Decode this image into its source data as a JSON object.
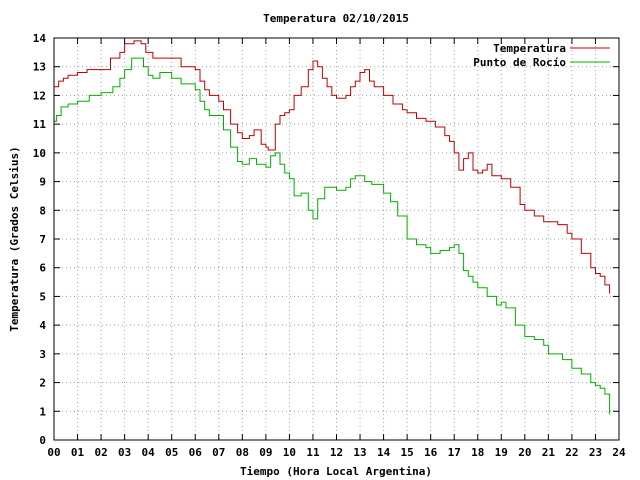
{
  "chart_data": {
    "type": "line",
    "title": "Temperatura 02/10/2015",
    "xlabel": "Tiempo (Hora Local Argentina)",
    "ylabel": "Temperatura (Grados Celsius)",
    "xlim": [
      0,
      24
    ],
    "ylim": [
      0,
      14
    ],
    "x_ticks": [
      "00",
      "01",
      "02",
      "03",
      "04",
      "05",
      "06",
      "07",
      "08",
      "09",
      "10",
      "11",
      "12",
      "13",
      "14",
      "15",
      "16",
      "17",
      "18",
      "19",
      "20",
      "21",
      "22",
      "23",
      "24"
    ],
    "y_ticks": [
      "0",
      "1",
      "2",
      "3",
      "4",
      "5",
      "6",
      "7",
      "8",
      "9",
      "10",
      "11",
      "12",
      "13",
      "14"
    ],
    "grid": true,
    "legend_position": "top-right",
    "colors": {
      "Temperatura": "#c00000",
      "Punto de Rocío": "#00b000"
    },
    "series": [
      {
        "name": "Temperatura",
        "x": [
          0.0,
          0.2,
          0.4,
          0.6,
          1.0,
          1.4,
          2.0,
          2.4,
          2.8,
          3.0,
          3.4,
          3.7,
          3.9,
          4.2,
          4.6,
          5.0,
          5.4,
          6.0,
          6.2,
          6.4,
          6.6,
          7.0,
          7.2,
          7.5,
          7.8,
          8.0,
          8.3,
          8.5,
          8.8,
          9.0,
          9.1,
          9.4,
          9.6,
          9.8,
          10.0,
          10.2,
          10.5,
          10.8,
          11.0,
          11.2,
          11.4,
          11.6,
          11.8,
          12.0,
          12.4,
          12.6,
          12.8,
          13.0,
          13.2,
          13.4,
          13.6,
          14.0,
          14.4,
          14.8,
          15.0,
          15.4,
          15.8,
          16.2,
          16.6,
          16.8,
          17.0,
          17.2,
          17.4,
          17.6,
          17.8,
          18.0,
          18.2,
          18.4,
          18.6,
          19.0,
          19.4,
          19.8,
          20.0,
          20.4,
          20.8,
          21.0,
          21.4,
          21.8,
          22.0,
          22.4,
          22.8,
          23.0,
          23.2,
          23.4,
          23.6
        ],
        "values": [
          12.3,
          12.5,
          12.6,
          12.7,
          12.8,
          12.9,
          12.9,
          13.3,
          13.5,
          13.8,
          13.9,
          13.8,
          13.5,
          13.3,
          13.3,
          13.3,
          13.0,
          12.9,
          12.5,
          12.2,
          12.0,
          11.8,
          11.5,
          11.0,
          10.7,
          10.5,
          10.6,
          10.8,
          10.3,
          10.2,
          10.1,
          11.0,
          11.3,
          11.4,
          11.5,
          12.0,
          12.3,
          12.9,
          13.2,
          13.0,
          12.6,
          12.3,
          12.0,
          11.9,
          12.0,
          12.3,
          12.5,
          12.8,
          12.9,
          12.5,
          12.3,
          12.0,
          11.7,
          11.5,
          11.4,
          11.2,
          11.1,
          10.9,
          10.6,
          10.4,
          10.0,
          9.4,
          9.8,
          10.0,
          9.4,
          9.3,
          9.4,
          9.6,
          9.2,
          9.1,
          8.8,
          8.2,
          8.0,
          7.8,
          7.6,
          7.6,
          7.5,
          7.2,
          7.0,
          6.5,
          6.0,
          5.8,
          5.7,
          5.4,
          5.1
        ]
      },
      {
        "name": "Punto de Rocío",
        "x": [
          0.0,
          0.1,
          0.3,
          0.6,
          1.0,
          1.5,
          2.0,
          2.5,
          2.8,
          3.0,
          3.3,
          3.6,
          3.8,
          4.0,
          4.2,
          4.5,
          5.0,
          5.4,
          6.0,
          6.2,
          6.4,
          6.6,
          7.0,
          7.2,
          7.5,
          7.8,
          8.0,
          8.3,
          8.6,
          9.0,
          9.2,
          9.4,
          9.6,
          9.8,
          10.0,
          10.2,
          10.5,
          10.8,
          11.0,
          11.2,
          11.5,
          12.0,
          12.4,
          12.6,
          12.8,
          13.0,
          13.2,
          13.5,
          14.0,
          14.3,
          14.6,
          15.0,
          15.4,
          15.8,
          16.0,
          16.4,
          16.8,
          17.0,
          17.2,
          17.4,
          17.6,
          17.8,
          18.0,
          18.4,
          18.8,
          19.0,
          19.2,
          19.6,
          20.0,
          20.4,
          20.8,
          21.0,
          21.3,
          21.6,
          22.0,
          22.4,
          22.8,
          23.0,
          23.2,
          23.4,
          23.6
        ],
        "values": [
          11.1,
          11.3,
          11.6,
          11.7,
          11.8,
          12.0,
          12.1,
          12.3,
          12.6,
          12.9,
          13.3,
          13.3,
          13.0,
          12.7,
          12.6,
          12.8,
          12.6,
          12.4,
          12.2,
          11.8,
          11.5,
          11.3,
          11.3,
          10.8,
          10.2,
          9.7,
          9.6,
          9.8,
          9.6,
          9.5,
          9.9,
          10.0,
          9.6,
          9.3,
          9.1,
          8.5,
          8.6,
          8.0,
          7.7,
          8.4,
          8.8,
          8.7,
          8.8,
          9.1,
          9.2,
          9.2,
          9.0,
          8.9,
          8.6,
          8.3,
          7.8,
          7.0,
          6.8,
          6.7,
          6.5,
          6.6,
          6.7,
          6.8,
          6.5,
          5.9,
          5.7,
          5.5,
          5.3,
          5.0,
          4.7,
          4.8,
          4.6,
          4.0,
          3.6,
          3.5,
          3.3,
          3.0,
          3.0,
          2.8,
          2.5,
          2.3,
          2.0,
          1.9,
          1.8,
          1.6,
          0.9
        ]
      }
    ]
  }
}
